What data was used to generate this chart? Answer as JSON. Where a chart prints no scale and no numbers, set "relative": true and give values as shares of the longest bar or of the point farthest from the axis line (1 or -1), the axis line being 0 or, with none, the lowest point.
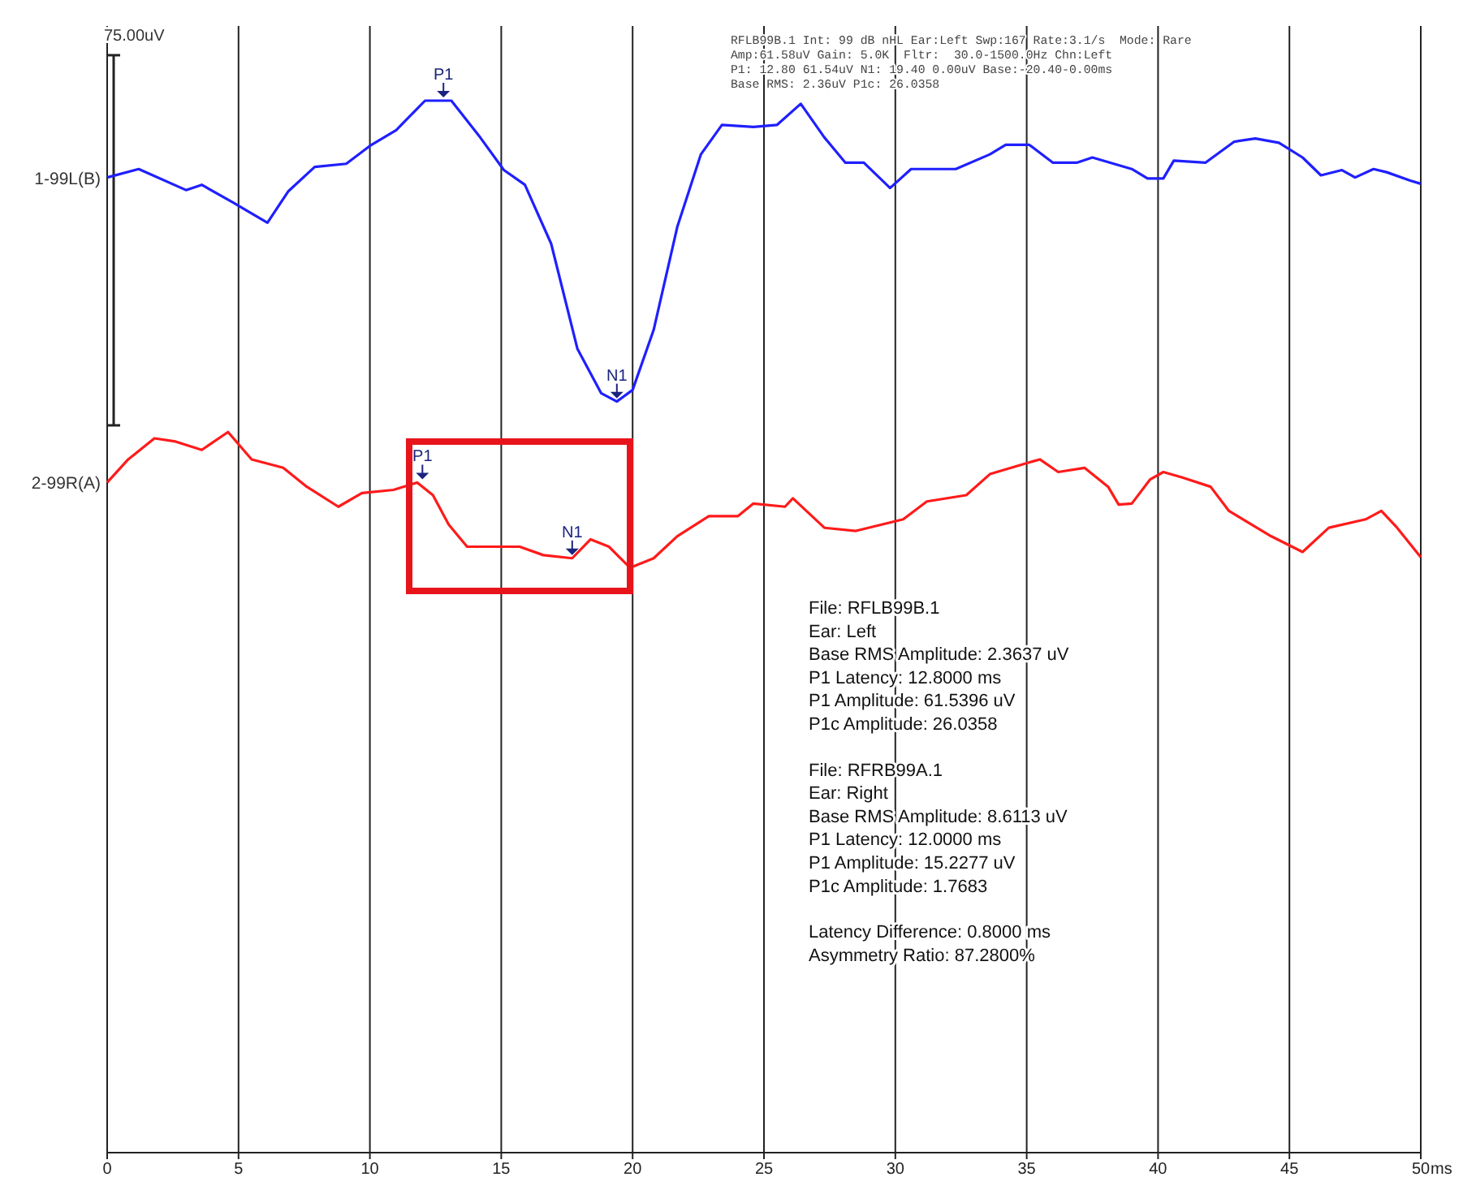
{
  "chart_data": {
    "type": "line",
    "relative": true,
    "xlabel": "ms",
    "xlim": [
      0,
      50
    ],
    "xticks": [
      0,
      5,
      10,
      15,
      20,
      25,
      30,
      35,
      40,
      45,
      50
    ],
    "grid": "x",
    "legend": false,
    "marker": "none",
    "line_style": "solid",
    "series": [
      {
        "name": "1-99L(B)",
        "color": "#1f1fff",
        "x": [
          0,
          1.2,
          3.0,
          3.6,
          4.8,
          6.1,
          6.9,
          7.9,
          9.1,
          10.0,
          11.0,
          12.1,
          13.1,
          14.2,
          15.1,
          15.9,
          16.9,
          17.9,
          18.8,
          19.4,
          20.0,
          20.8,
          21.7,
          22.6,
          23.4,
          24.6,
          25.5,
          26.4,
          27.3,
          28.1,
          28.8,
          29.8,
          30.6,
          32.3,
          33.6,
          34.2,
          35.1,
          36.0,
          36.9,
          37.5,
          39.0,
          39.6,
          40.2,
          40.6,
          41.8,
          42.9,
          43.7,
          44.6,
          45.5,
          46.2,
          47.0,
          47.5,
          48.2,
          48.7,
          49.6,
          50
        ],
        "values": [
          0.927,
          0.935,
          0.915,
          0.92,
          0.903,
          0.884,
          0.914,
          0.937,
          0.94,
          0.957,
          0.972,
          1.0,
          1.0,
          0.965,
          0.934,
          0.92,
          0.864,
          0.764,
          0.722,
          0.714,
          0.725,
          0.782,
          0.88,
          0.949,
          0.977,
          0.975,
          0.977,
          0.997,
          0.965,
          0.941,
          0.941,
          0.917,
          0.935,
          0.935,
          0.949,
          0.958,
          0.958,
          0.941,
          0.941,
          0.946,
          0.935,
          0.926,
          0.926,
          0.943,
          0.941,
          0.961,
          0.964,
          0.96,
          0.946,
          0.929,
          0.934,
          0.927,
          0.935,
          0.932,
          0.924,
          0.921
        ]
      },
      {
        "name": "2-99R(A)",
        "color": "#ff1a1a",
        "x": [
          0,
          0.8,
          1.8,
          2.6,
          3.6,
          4.6,
          5.5,
          6.7,
          7.6,
          8.8,
          9.7,
          10.9,
          11.8,
          12.4,
          13.0,
          13.7,
          14.7,
          15.7,
          16.6,
          17.7,
          18.4,
          19.1,
          19.9,
          20.8,
          21.7,
          22.9,
          24.0,
          24.6,
          25.8,
          26.1,
          27.3,
          28.5,
          30.3,
          31.2,
          32.7,
          33.6,
          34.8,
          35.5,
          36.2,
          37.2,
          38.1,
          38.5,
          39.0,
          39.7,
          40.2,
          40.9,
          42.0,
          42.7,
          44.3,
          45.5,
          46.5,
          47.9,
          48.5,
          49.1,
          50
        ],
        "values": [
          0.637,
          0.659,
          0.679,
          0.676,
          0.668,
          0.685,
          0.659,
          0.651,
          0.633,
          0.614,
          0.627,
          0.63,
          0.637,
          0.625,
          0.597,
          0.576,
          0.576,
          0.576,
          0.568,
          0.565,
          0.583,
          0.576,
          0.556,
          0.565,
          0.586,
          0.605,
          0.605,
          0.617,
          0.614,
          0.622,
          0.594,
          0.591,
          0.602,
          0.619,
          0.625,
          0.645,
          0.654,
          0.659,
          0.647,
          0.651,
          0.633,
          0.616,
          0.617,
          0.64,
          0.647,
          0.642,
          0.633,
          0.61,
          0.586,
          0.571,
          0.594,
          0.602,
          0.61,
          0.594,
          0.566
        ]
      }
    ],
    "annotations": [
      "75.00uV",
      "RFLB99B.1 Int: 99 dB nHL Ear:Left Swp:167 Rate:3.1/s  Mode: Rare",
      "Amp:61.58uV Gain: 5.0K  Fltr:  30.0-1500.0Hz Chn:Left",
      "P1: 12.80 61.54uV N1: 19.40 0.00uV Base:-20.40-0.00ms",
      "Base RMS: 2.36uV P1c: 26.0358",
      "File: RFLB99B.1",
      "Ear: Left",
      "Base RMS Amplitude: 2.3637 uV",
      "P1   Latency: 12.8000 ms",
      "P1   Amplitude: 61.5396 uV",
      "P1c  Amplitude: 26.0358",
      "File: RFRB99A.1",
      "Ear: Right",
      "Base RMS Amplitude: 8.6113 uV",
      "P1   Latency: 12.0000 ms",
      "P1   Amplitude: 15.2277 uV",
      "P1c  Amplitude: 1.7683",
      "Latency Difference: 0.8000 ms",
      "Asymmetry Ratio: 87.2800%",
      {
        "text": "P1",
        "x": 12.8,
        "y": 1.0
      },
      {
        "text": "N1",
        "x": 19.4,
        "y": 0.714
      },
      {
        "text": "P1",
        "x": 12.0,
        "y": 0.637
      },
      {
        "text": "N1",
        "x": 17.7,
        "y": 0.565
      }
    ]
  }
}
